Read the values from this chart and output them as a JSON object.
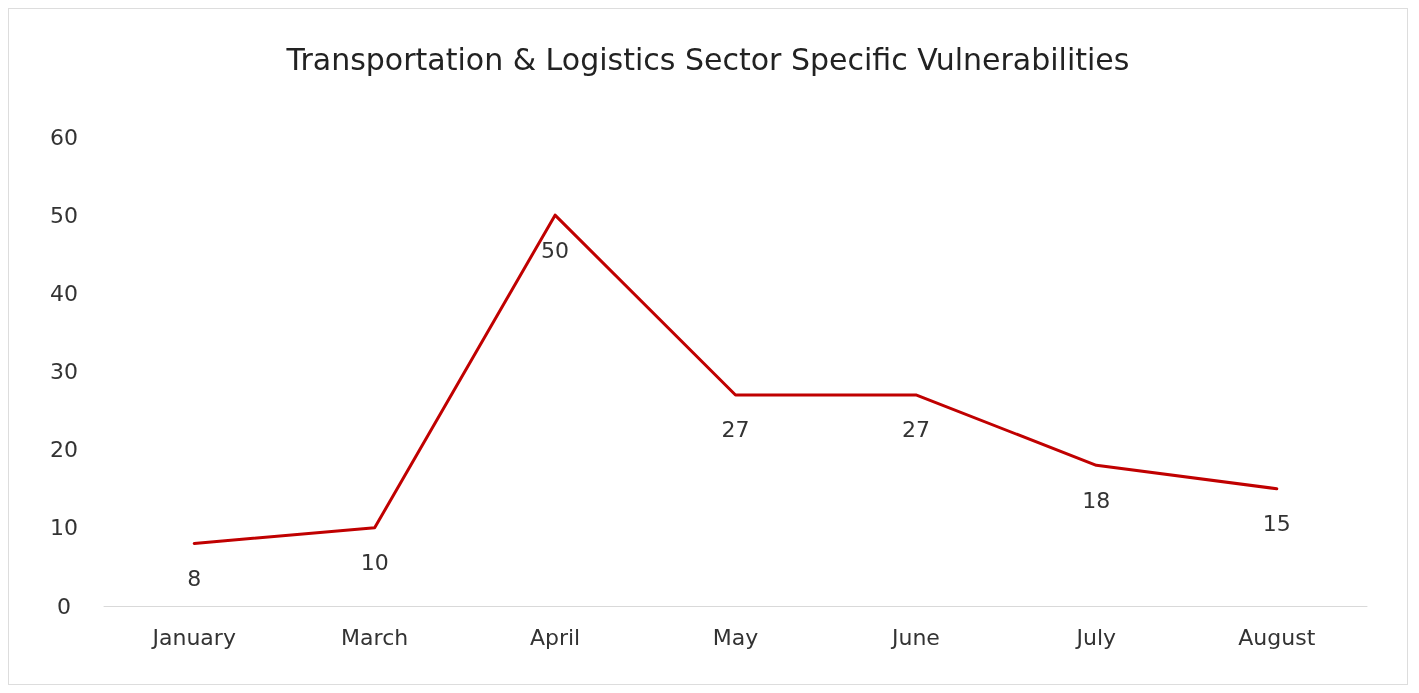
{
  "chart_data": {
    "type": "line",
    "title": "Transportation & Logistics Sector Specific Vulnerabilities",
    "categories": [
      "January",
      "March",
      "April",
      "May",
      "June",
      "July",
      "August"
    ],
    "series": [
      {
        "color": "#c00000",
        "values": [
          8,
          10,
          50,
          27,
          27,
          18,
          15
        ]
      }
    ],
    "ylim": [
      0,
      60
    ],
    "yticks": [
      0,
      10,
      20,
      30,
      40,
      50,
      60
    ],
    "grid": false,
    "marker": "none",
    "line_style": "solid",
    "data_labels": true
  }
}
